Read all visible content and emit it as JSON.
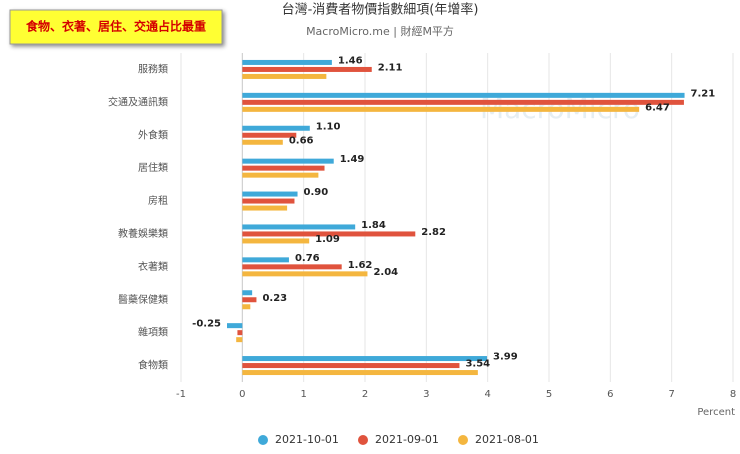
{
  "chart_data": {
    "type": "hbar",
    "title": "台灣-消費者物價指數細項(年增率)",
    "subtitle": "MacroMicro.me | 財經M平方",
    "annotation": "食物、衣著、居住、交通占比最重",
    "watermark": "MacroMicro",
    "x_label": "Percent",
    "categories": [
      "服務類",
      "交通及通訊類",
      "外食類",
      "居住類",
      "房租",
      "教養娛樂類",
      "衣著類",
      "醫藥保健類",
      "雜項類",
      "食物類"
    ],
    "series": [
      {
        "name": "2021-10-01",
        "color": "#3fa9d9",
        "values": [
          1.46,
          7.21,
          1.1,
          1.49,
          0.9,
          1.84,
          0.76,
          0.16,
          -0.25,
          3.99
        ],
        "value_labels": [
          "1.46",
          "7.21",
          "1.10",
          "1.49",
          "0.90",
          "1.84",
          "0.76",
          null,
          "-0.25",
          "3.99"
        ]
      },
      {
        "name": "2021-09-01",
        "color": "#e0533d",
        "values": [
          2.11,
          7.2,
          0.88,
          1.34,
          0.85,
          2.82,
          1.62,
          0.23,
          -0.08,
          3.54
        ],
        "value_labels": [
          "2.11",
          null,
          null,
          null,
          null,
          "2.82",
          "1.62",
          "0.23",
          null,
          "3.54"
        ]
      },
      {
        "name": "2021-08-01",
        "color": "#f4b63f",
        "values": [
          1.37,
          6.47,
          0.66,
          1.24,
          0.73,
          1.09,
          2.04,
          0.13,
          -0.1,
          3.84
        ],
        "value_labels": [
          null,
          "6.47",
          "0.66",
          null,
          null,
          "1.09",
          "2.04",
          null,
          null,
          null
        ]
      }
    ],
    "xlim": [
      -1,
      8
    ],
    "xticks": [
      -1,
      0,
      1,
      2,
      3,
      4,
      5,
      6,
      7,
      8
    ],
    "grid": true
  }
}
